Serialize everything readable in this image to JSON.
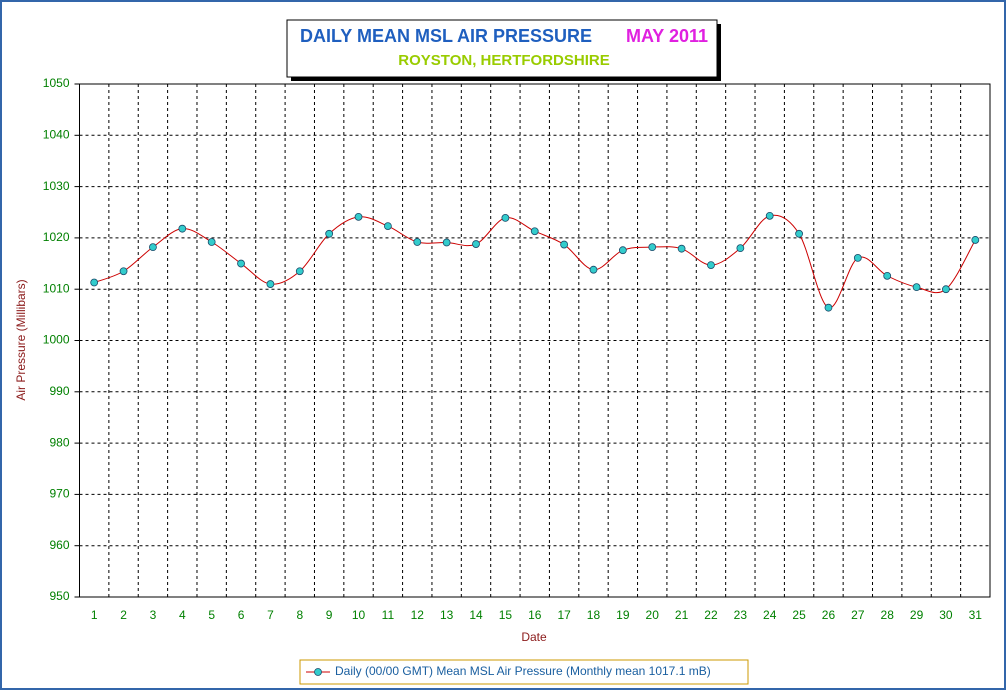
{
  "chart_data": {
    "type": "line",
    "title": "DAILY MEAN MSL AIR PRESSURE",
    "title_date": "MAY 2011",
    "subtitle": "ROYSTON, HERTFORDSHIRE",
    "y_label": "Air Pressure (Millibars)",
    "x_label": "Date",
    "categories": [
      "1",
      "2",
      "3",
      "4",
      "5",
      "6",
      "7",
      "8",
      "9",
      "10",
      "11",
      "12",
      "13",
      "14",
      "15",
      "16",
      "17",
      "18",
      "19",
      "20",
      "21",
      "22",
      "23",
      "24",
      "25",
      "26",
      "27",
      "28",
      "29",
      "30",
      "31"
    ],
    "series": [
      {
        "name": "Daily (00/00 GMT) Mean MSL Air Pressure (Monthly mean 1017.1 mB)",
        "color": "#cc0000",
        "marker_color": "#33cccc",
        "values": [
          1011.3,
          1013.5,
          1018.2,
          1021.8,
          1019.2,
          1015.0,
          1011.0,
          1013.5,
          1020.8,
          1024.1,
          1022.3,
          1019.2,
          1019.1,
          1018.8,
          1023.9,
          1021.3,
          1018.7,
          1013.8,
          1017.6,
          1018.2,
          1017.9,
          1014.7,
          1018.0,
          1024.3,
          1020.8,
          1006.4,
          1016.1,
          1012.6,
          1010.4,
          1010.0,
          1019.6
        ]
      }
    ],
    "ylim": [
      950,
      1050
    ],
    "yticks": [
      950,
      960,
      970,
      980,
      990,
      1000,
      1010,
      1020,
      1030,
      1040,
      1050
    ],
    "grid": true
  }
}
